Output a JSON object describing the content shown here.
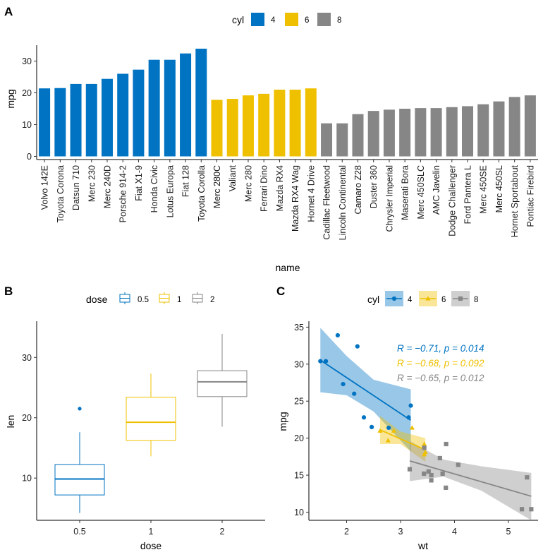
{
  "panel_labels": [
    "A",
    "B",
    "C"
  ],
  "chart_data": [
    {
      "panel": "A",
      "type": "bar",
      "xlabel": "name",
      "ylabel": "mpg",
      "ylim": [
        -1,
        35
      ],
      "yticks": [
        0,
        10,
        20,
        30
      ],
      "legend": {
        "title": "cyl",
        "position": "top",
        "entries": [
          "4",
          "6",
          "8"
        ]
      },
      "colors": {
        "4": "#0073C2",
        "6": "#EFC000",
        "8": "#868686"
      },
      "bars": [
        {
          "name": "Volvo 142E",
          "value": 21.4,
          "cyl": "4"
        },
        {
          "name": "Toyota Corona",
          "value": 21.5,
          "cyl": "4"
        },
        {
          "name": "Datsun 710",
          "value": 22.8,
          "cyl": "4"
        },
        {
          "name": "Merc 230",
          "value": 22.8,
          "cyl": "4"
        },
        {
          "name": "Merc 240D",
          "value": 24.4,
          "cyl": "4"
        },
        {
          "name": "Porsche 914-2",
          "value": 26.0,
          "cyl": "4"
        },
        {
          "name": "Fiat X1-9",
          "value": 27.3,
          "cyl": "4"
        },
        {
          "name": "Honda Civic",
          "value": 30.4,
          "cyl": "4"
        },
        {
          "name": "Lotus Europa",
          "value": 30.4,
          "cyl": "4"
        },
        {
          "name": "Fiat 128",
          "value": 32.4,
          "cyl": "4"
        },
        {
          "name": "Toyota Corolla",
          "value": 33.9,
          "cyl": "4"
        },
        {
          "name": "Merc 280C",
          "value": 17.8,
          "cyl": "6"
        },
        {
          "name": "Valiant",
          "value": 18.1,
          "cyl": "6"
        },
        {
          "name": "Merc 280",
          "value": 19.2,
          "cyl": "6"
        },
        {
          "name": "Ferrari Dino",
          "value": 19.7,
          "cyl": "6"
        },
        {
          "name": "Mazda RX4",
          "value": 21.0,
          "cyl": "6"
        },
        {
          "name": "Mazda RX4 Wag",
          "value": 21.0,
          "cyl": "6"
        },
        {
          "name": "Hornet 4 Drive",
          "value": 21.4,
          "cyl": "6"
        },
        {
          "name": "Cadillac Fleetwood",
          "value": 10.4,
          "cyl": "8"
        },
        {
          "name": "Lincoln Continental",
          "value": 10.4,
          "cyl": "8"
        },
        {
          "name": "Camaro Z28",
          "value": 13.3,
          "cyl": "8"
        },
        {
          "name": "Duster 360",
          "value": 14.3,
          "cyl": "8"
        },
        {
          "name": "Chrysler Imperial",
          "value": 14.7,
          "cyl": "8"
        },
        {
          "name": "Maserati Bora",
          "value": 15.0,
          "cyl": "8"
        },
        {
          "name": "Merc 450SLC",
          "value": 15.2,
          "cyl": "8"
        },
        {
          "name": "AMC Javelin",
          "value": 15.2,
          "cyl": "8"
        },
        {
          "name": "Dodge Challenger",
          "value": 15.5,
          "cyl": "8"
        },
        {
          "name": "Ford Pantera L",
          "value": 15.8,
          "cyl": "8"
        },
        {
          "name": "Merc 450SE",
          "value": 16.4,
          "cyl": "8"
        },
        {
          "name": "Merc 450SL",
          "value": 17.3,
          "cyl": "8"
        },
        {
          "name": "Hornet Sportabout",
          "value": 18.7,
          "cyl": "8"
        },
        {
          "name": "Pontiac Firebird",
          "value": 19.2,
          "cyl": "8"
        }
      ]
    },
    {
      "panel": "B",
      "type": "boxplot",
      "xlabel": "dose",
      "ylabel": "len",
      "ylim": [
        3,
        36
      ],
      "yticks": [
        10,
        20,
        30
      ],
      "legend": {
        "title": "dose",
        "position": "top",
        "entries": [
          "0.5",
          "1",
          "2"
        ]
      },
      "colors": {
        "0.5": "#0073C2",
        "1": "#EFC000",
        "2": "#868686"
      },
      "groups": [
        {
          "label": "0.5",
          "min": 4.2,
          "q1": 7.2,
          "median": 9.85,
          "q3": 12.25,
          "max": 17.6,
          "outliers": [
            21.5
          ]
        },
        {
          "label": "1",
          "min": 13.6,
          "q1": 16.25,
          "median": 19.25,
          "q3": 23.4,
          "max": 27.3,
          "outliers": []
        },
        {
          "label": "2",
          "min": 18.5,
          "q1": 23.5,
          "median": 25.95,
          "q3": 27.8,
          "max": 33.9,
          "outliers": []
        }
      ]
    },
    {
      "panel": "C",
      "type": "scatter",
      "xlabel": "wt",
      "ylabel": "mpg",
      "xlim": [
        1.3,
        5.55
      ],
      "ylim": [
        8.9,
        35.8
      ],
      "xticks": [
        2,
        3,
        4,
        5
      ],
      "yticks": [
        10,
        15,
        20,
        25,
        30,
        35
      ],
      "legend": {
        "title": "cyl",
        "position": "top",
        "entries": [
          "4",
          "6",
          "8"
        ]
      },
      "colors": {
        "4": "#0073C2",
        "6": "#EFC000",
        "8": "#868686"
      },
      "series": [
        {
          "name": "4",
          "marker": "circle",
          "points": [
            [
              2.32,
              22.8
            ],
            [
              3.19,
              24.4
            ],
            [
              3.15,
              22.8
            ],
            [
              2.2,
              32.4
            ],
            [
              1.615,
              30.4
            ],
            [
              1.835,
              33.9
            ],
            [
              2.465,
              21.5
            ],
            [
              1.935,
              27.3
            ],
            [
              2.14,
              26.0
            ],
            [
              1.513,
              30.4
            ],
            [
              2.78,
              21.4
            ]
          ],
          "fit": {
            "x": [
              1.513,
              3.19
            ],
            "y": [
              30.54,
              22.41
            ]
          },
          "band": {
            "x": [
              1.513,
              2.0,
              2.5,
              3.19
            ],
            "lower": [
              26.2,
              25.8,
              23.6,
              18.2
            ],
            "upper": [
              34.9,
              31.1,
              27.9,
              26.6
            ]
          },
          "annotation": "R = −0.71, p = 0.014"
        },
        {
          "name": "6",
          "marker": "triangle",
          "points": [
            [
              2.62,
              21.0
            ],
            [
              2.875,
              21.0
            ],
            [
              3.215,
              21.4
            ],
            [
              3.46,
              18.1
            ],
            [
              3.44,
              19.2
            ],
            [
              3.44,
              17.8
            ],
            [
              2.77,
              19.7
            ]
          ],
          "fit": {
            "x": [
              2.62,
              3.46
            ],
            "y": [
              21.13,
              18.42
            ]
          },
          "band": {
            "x": [
              2.62,
              3.0,
              3.46
            ],
            "lower": [
              19.2,
              19.2,
              16.8
            ],
            "upper": [
              23.0,
              20.9,
              20.0
            ]
          },
          "annotation": "R = −0.68, p = 0.092"
        },
        {
          "name": "8",
          "marker": "square",
          "points": [
            [
              3.44,
              18.7
            ],
            [
              3.57,
              14.3
            ],
            [
              4.07,
              16.4
            ],
            [
              3.73,
              17.3
            ],
            [
              3.78,
              15.2
            ],
            [
              5.25,
              10.4
            ],
            [
              5.424,
              10.4
            ],
            [
              5.345,
              14.7
            ],
            [
              3.52,
              15.5
            ],
            [
              3.435,
              15.2
            ],
            [
              3.84,
              13.3
            ],
            [
              3.845,
              19.2
            ],
            [
              3.17,
              15.8
            ],
            [
              3.57,
              15.0
            ]
          ],
          "fit": {
            "x": [
              3.17,
              5.424
            ],
            "y": [
              16.92,
              12.15
            ]
          },
          "band": {
            "x": [
              3.17,
              3.8,
              4.5,
              5.424
            ],
            "lower": [
              14.2,
              14.8,
              12.9,
              8.9
            ],
            "upper": [
              19.6,
              17.1,
              16.2,
              15.3
            ]
          },
          "annotation": "R = −0.65, p = 0.012"
        }
      ]
    }
  ]
}
